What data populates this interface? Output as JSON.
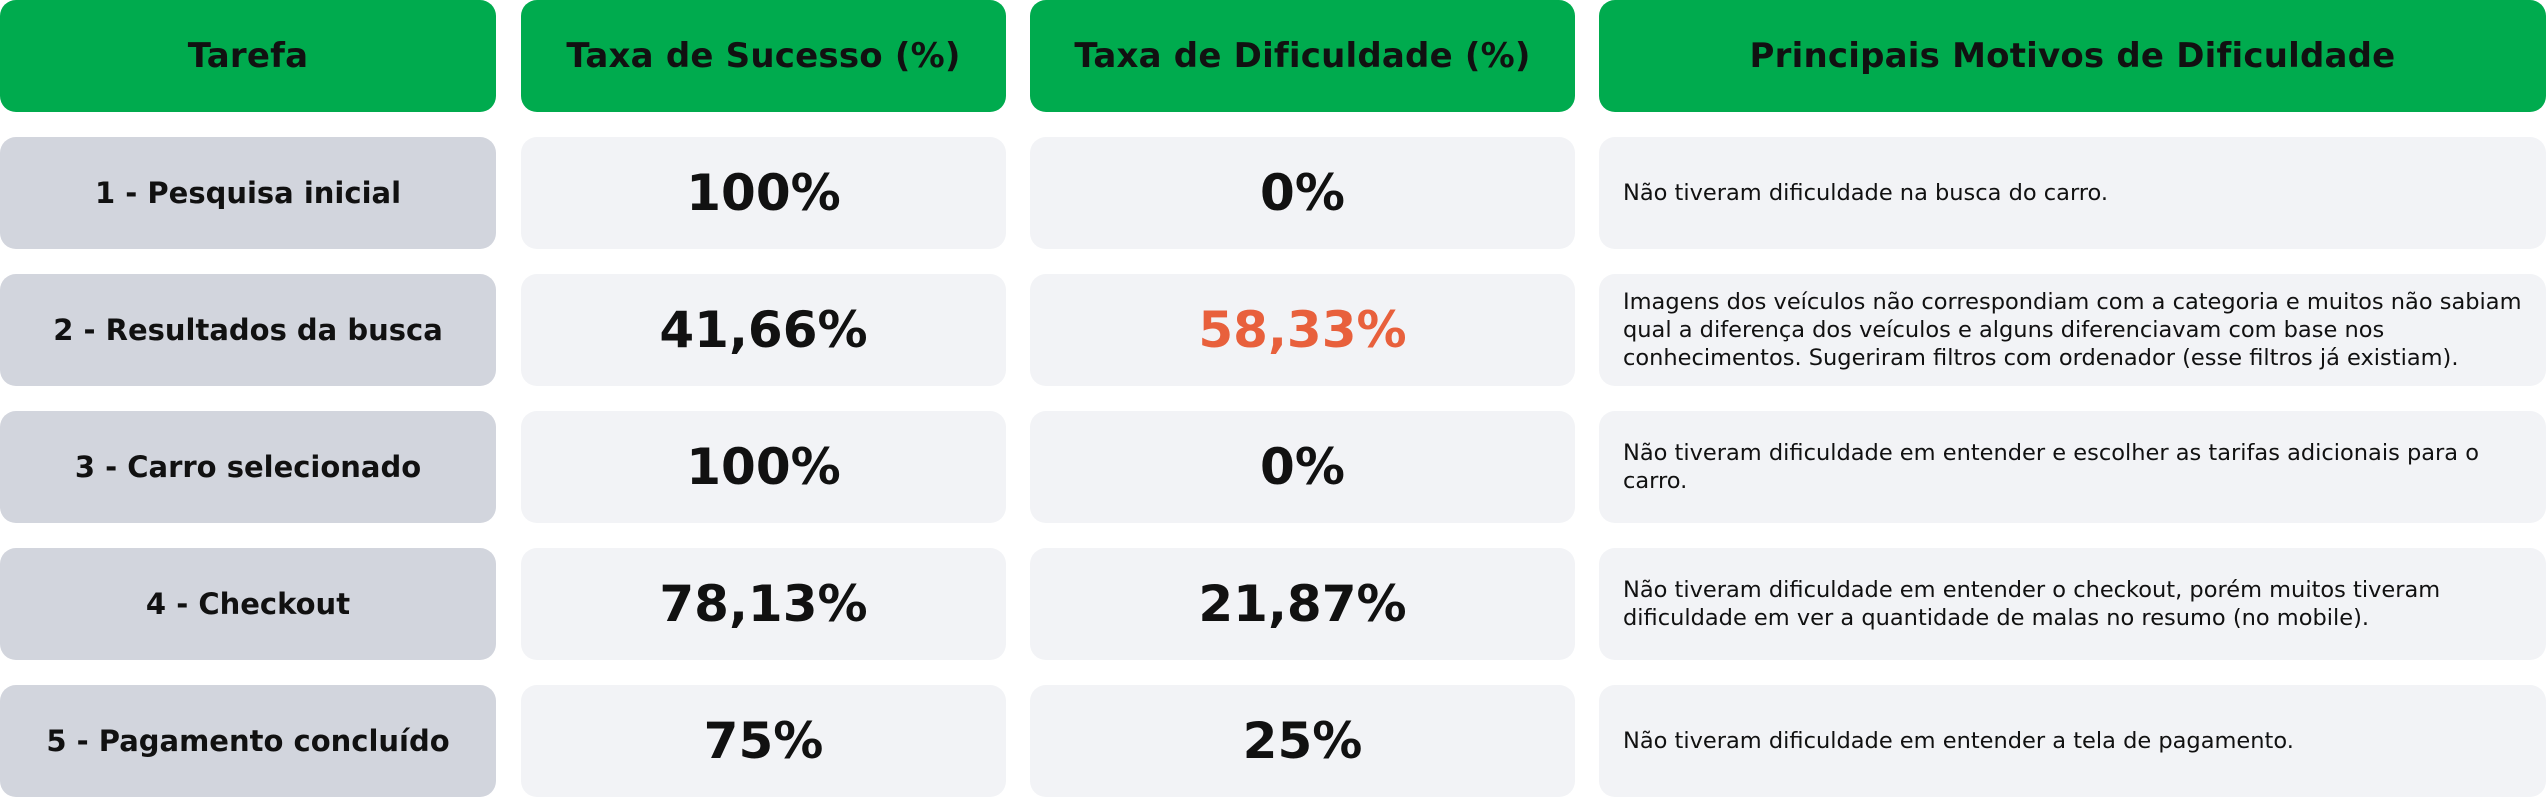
{
  "headers": {
    "task": "Tarefa",
    "success": "Taxa de Sucesso (%)",
    "difficulty": "Taxa de Dificuldade (%)",
    "reasons": "Principais Motivos de Dificuldade"
  },
  "rows": [
    {
      "task": "1 - Pesquisa inicial",
      "success": "100%",
      "difficulty": "0%",
      "reason": "Não tiveram dificuldade na busca do carro."
    },
    {
      "task": "2 - Resultados da busca",
      "success": "41,66%",
      "difficulty": "58,33%",
      "reason": "Imagens dos veículos não correspondiam com a categoria e muitos não sabiam qual a diferença dos veículos e alguns diferenciavam com base nos conhecimentos. Sugeriram filtros com ordenador (esse filtros já existiam)."
    },
    {
      "task": "3 - Carro selecionado",
      "success": "100%",
      "difficulty": "0%",
      "reason": "Não tiveram dificuldade em entender e escolher as tarifas adicionais para o carro."
    },
    {
      "task": "4 - Checkout",
      "success": "78,13%",
      "difficulty": "21,87%",
      "reason": "Não tiveram dificuldade em entender o checkout, porém muitos tiveram dificuldade em ver a quantidade de malas no resumo (no mobile)."
    },
    {
      "task": "5 - Pagamento concluído",
      "success": "75%",
      "difficulty": "25%",
      "reason": "Não tiveram dificuldade em entender a tela de pagamento."
    }
  ],
  "colors": {
    "header_bg": "#00ab4e",
    "task_bg": "#d2d5dd",
    "cell_bg": "#f2f3f6",
    "highlight_text": "#e8603c"
  }
}
